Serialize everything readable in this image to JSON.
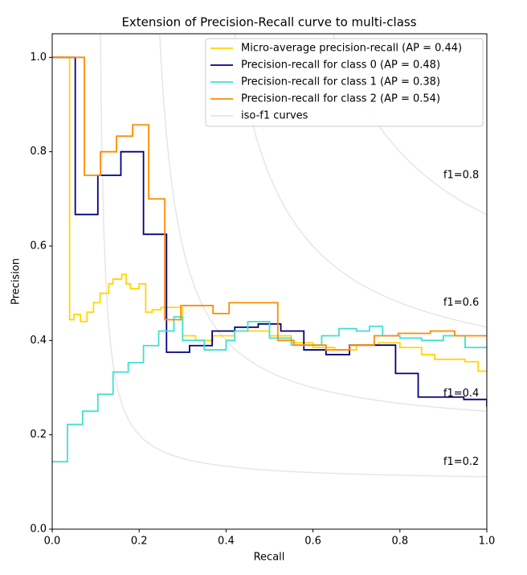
{
  "chart_data": {
    "type": "step",
    "title": "Extension of Precision-Recall curve to multi-class",
    "x_label": "Recall",
    "y_label": "Precision",
    "xlim": [
      0,
      1
    ],
    "ylim": [
      0,
      1.05
    ],
    "xticks": [
      {
        "value": 0,
        "label": "0.0"
      },
      0.2,
      0.4,
      0.6,
      0.8,
      {
        "value": 1,
        "label": "1.0"
      }
    ],
    "yticks": [
      {
        "value": 0,
        "label": "0.0"
      },
      0.2,
      0.4,
      0.6,
      0.8,
      {
        "value": 1,
        "label": "1.0"
      }
    ],
    "legend": "upper right",
    "series": [
      {
        "name": "Micro-average precision-recall (AP = 0.44)",
        "color": "gold",
        "x": [
          0,
          0.04,
          0.05,
          0.065,
          0.08,
          0.095,
          0.11,
          0.13,
          0.14,
          0.16,
          0.17,
          0.18,
          0.2,
          0.215,
          0.23,
          0.25,
          0.3,
          0.33,
          0.37,
          0.42,
          0.5,
          0.55,
          0.6,
          0.65,
          0.7,
          0.75,
          0.8,
          0.85,
          0.88,
          0.95,
          0.98,
          1.0
        ],
        "values": [
          1.0,
          0.444,
          0.455,
          0.44,
          0.46,
          0.48,
          0.5,
          0.52,
          0.53,
          0.54,
          0.52,
          0.51,
          0.52,
          0.46,
          0.465,
          0.47,
          0.41,
          0.4,
          0.41,
          0.42,
          0.41,
          0.395,
          0.385,
          0.38,
          0.39,
          0.395,
          0.385,
          0.37,
          0.36,
          0.355,
          0.335,
          0.335
        ]
      },
      {
        "name": "Precision-recall for class 0 (AP = 0.48)",
        "color": "navy",
        "x": [
          0,
          0.053,
          0.105,
          0.158,
          0.21,
          0.263,
          0.316,
          0.368,
          0.42,
          0.474,
          0.526,
          0.579,
          0.63,
          0.684,
          0.79,
          0.842,
          0.947,
          1.0
        ],
        "values": [
          1.0,
          0.667,
          0.75,
          0.8,
          0.625,
          0.375,
          0.389,
          0.42,
          0.428,
          0.435,
          0.42,
          0.38,
          0.37,
          0.39,
          0.33,
          0.28,
          0.275,
          0.26
        ]
      },
      {
        "name": "Precision-recall for class 1 (AP = 0.38)",
        "color": "turquoise",
        "x": [
          0,
          0.035,
          0.07,
          0.105,
          0.14,
          0.175,
          0.21,
          0.245,
          0.28,
          0.3,
          0.35,
          0.4,
          0.42,
          0.45,
          0.5,
          0.55,
          0.6,
          0.62,
          0.66,
          0.7,
          0.73,
          0.76,
          0.8,
          0.85,
          0.9,
          0.95,
          1.0
        ],
        "values": [
          0.143,
          0.222,
          0.25,
          0.286,
          0.333,
          0.353,
          0.389,
          0.42,
          0.45,
          0.4,
          0.38,
          0.4,
          0.42,
          0.44,
          0.405,
          0.39,
          0.39,
          0.41,
          0.425,
          0.42,
          0.43,
          0.41,
          0.405,
          0.4,
          0.41,
          0.385,
          0.385
        ]
      },
      {
        "name": "Precision-recall for class 2 (AP = 0.54)",
        "color": "darkorange",
        "x": [
          0,
          0.074,
          0.111,
          0.148,
          0.185,
          0.222,
          0.259,
          0.296,
          0.37,
          0.407,
          0.519,
          0.556,
          0.593,
          0.63,
          0.685,
          0.741,
          0.796,
          0.87,
          0.926,
          1.0
        ],
        "values": [
          1.0,
          0.75,
          0.8,
          0.833,
          0.857,
          0.7,
          0.444,
          0.474,
          0.457,
          0.48,
          0.4,
          0.39,
          0.39,
          0.38,
          0.39,
          0.41,
          0.415,
          0.42,
          0.41,
          0.41
        ]
      }
    ],
    "iso_f1": {
      "name": "iso-f1 curves",
      "color": "#e6e6e6",
      "values": [
        {
          "value": 0.2,
          "label": "f1=0.2"
        },
        {
          "value": 0.4,
          "label": "f1=0.4"
        },
        {
          "value": 0.6,
          "label": "f1=0.6"
        },
        {
          "value": 0.8,
          "label": "f1=0.8"
        }
      ]
    }
  }
}
